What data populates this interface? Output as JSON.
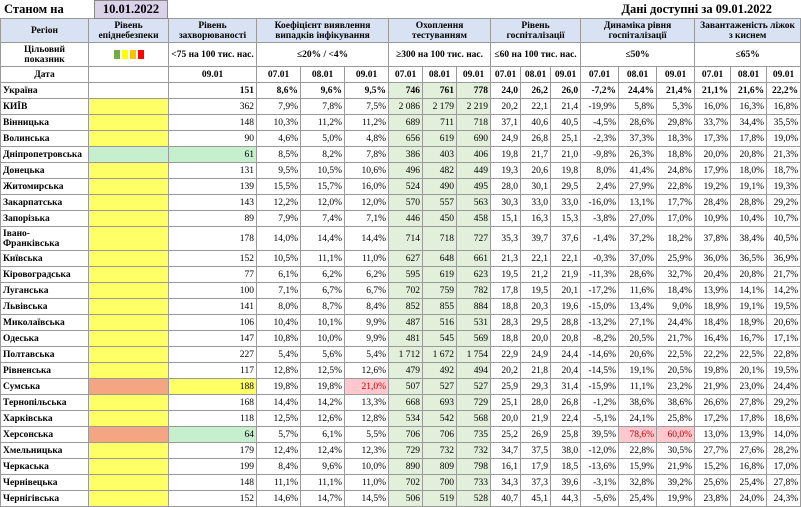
{
  "header": {
    "as_of_label": "Станом на",
    "as_of_date": "10.01.2022",
    "data_available": "Дані доступні за 09.01.2022"
  },
  "columns": {
    "region": "Регіон",
    "level": "Рівень епіднебезпеки",
    "incidence": "Рівень захворюваності",
    "detection": "Коефіцієнт виявлення випадків інфікування",
    "testing": "Охоплення тестуванням",
    "hosp": "Рівень госпіталізації",
    "hosp_dyn": "Динаміка рівня госпіталізації",
    "oxygen": "Завантаженість ліжок з киснем"
  },
  "targets": {
    "label": "Цільовий показник",
    "incidence": "<75 на 100 тис. нас.",
    "detection": "≤20% / <4%",
    "testing": "≥300 на 100 тис. нас.",
    "hosp": "≤60 на 100 тис. нас.",
    "hosp_dyn": "≤50%",
    "oxygen": "≤65%"
  },
  "legend_colors": [
    "#70ad47",
    "#ffff00",
    "#ffc000",
    "#ff0000"
  ],
  "date_row": {
    "label": "Дата",
    "incidence": "09.01",
    "d3": [
      "07.01",
      "08.01",
      "09.01"
    ]
  },
  "rows": [
    {
      "name": "Україна",
      "lvl": "",
      "inc": "151",
      "det": [
        "8,6%",
        "9,6%",
        "9,5%"
      ],
      "tst": [
        "746",
        "761",
        "778"
      ],
      "hsp": [
        "24,0",
        "26,2",
        "26,0"
      ],
      "dyn": [
        "-7,2%",
        "24,4%",
        "21,4%"
      ],
      "oxy": [
        "21,1%",
        "21,6%",
        "22,2%"
      ]
    },
    {
      "name": "КИЇВ",
      "lvl": "y",
      "inc": "362",
      "det": [
        "7,9%",
        "7,8%",
        "7,5%"
      ],
      "tst": [
        "2 086",
        "2 179",
        "2 219"
      ],
      "hsp": [
        "20,2",
        "22,1",
        "21,4"
      ],
      "dyn": [
        "-19,9%",
        "5,8%",
        "5,3%"
      ],
      "oxy": [
        "16,0%",
        "16,3%",
        "16,8%"
      ]
    },
    {
      "name": "Вінницька",
      "lvl": "y",
      "inc": "148",
      "det": [
        "10,3%",
        "11,2%",
        "11,2%"
      ],
      "tst": [
        "689",
        "711",
        "718"
      ],
      "hsp": [
        "37,1",
        "40,6",
        "40,5"
      ],
      "dyn": [
        "-4,5%",
        "28,6%",
        "29,8%"
      ],
      "oxy": [
        "33,7%",
        "34,4%",
        "35,5%"
      ]
    },
    {
      "name": "Волинська",
      "lvl": "y",
      "inc": "90",
      "det": [
        "4,6%",
        "5,0%",
        "4,8%"
      ],
      "tst": [
        "656",
        "619",
        "690"
      ],
      "hsp": [
        "24,9",
        "26,8",
        "25,1"
      ],
      "dyn": [
        "-2,3%",
        "37,3%",
        "18,3%"
      ],
      "oxy": [
        "17,3%",
        "17,8%",
        "19,0%"
      ]
    },
    {
      "name": "Дніпропетровська",
      "lvl": "g",
      "inc": "61",
      "det": [
        "8,5%",
        "8,2%",
        "7,8%"
      ],
      "tst": [
        "386",
        "403",
        "406"
      ],
      "hsp": [
        "19,8",
        "21,7",
        "21,0"
      ],
      "dyn": [
        "-9,8%",
        "26,3%",
        "18,8%"
      ],
      "oxy": [
        "20,0%",
        "20,8%",
        "21,3%"
      ]
    },
    {
      "name": "Донецька",
      "lvl": "y",
      "inc": "131",
      "det": [
        "9,5%",
        "10,5%",
        "10,6%"
      ],
      "tst": [
        "496",
        "482",
        "449"
      ],
      "hsp": [
        "19,3",
        "20,6",
        "19,8"
      ],
      "dyn": [
        "8,0%",
        "41,4%",
        "24,8%"
      ],
      "oxy": [
        "17,9%",
        "18,0%",
        "18,7%"
      ]
    },
    {
      "name": "Житомирська",
      "lvl": "y",
      "inc": "139",
      "det": [
        "15,5%",
        "15,7%",
        "16,0%"
      ],
      "tst": [
        "524",
        "490",
        "495"
      ],
      "hsp": [
        "28,0",
        "30,1",
        "29,5"
      ],
      "dyn": [
        "2,4%",
        "27,9%",
        "22,8%"
      ],
      "oxy": [
        "19,2%",
        "19,1%",
        "19,3%"
      ]
    },
    {
      "name": "Закарпатська",
      "lvl": "y",
      "inc": "143",
      "det": [
        "12,2%",
        "12,0%",
        "12,0%"
      ],
      "tst": [
        "570",
        "557",
        "563"
      ],
      "hsp": [
        "30,3",
        "33,0",
        "33,0"
      ],
      "dyn": [
        "-16,0%",
        "13,1%",
        "17,7%"
      ],
      "oxy": [
        "28,4%",
        "28,8%",
        "29,2%"
      ]
    },
    {
      "name": "Запорізька",
      "lvl": "y",
      "inc": "89",
      "det": [
        "7,9%",
        "7,4%",
        "7,1%"
      ],
      "tst": [
        "446",
        "450",
        "458"
      ],
      "hsp": [
        "15,1",
        "16,3",
        "15,3"
      ],
      "dyn": [
        "-3,8%",
        "27,0%",
        "17,0%"
      ],
      "oxy": [
        "10,9%",
        "10,4%",
        "10,7%"
      ]
    },
    {
      "name": "Івано-Франківська",
      "lvl": "y",
      "inc": "178",
      "det": [
        "14,0%",
        "14,4%",
        "14,4%"
      ],
      "tst": [
        "714",
        "718",
        "727"
      ],
      "hsp": [
        "35,3",
        "39,7",
        "37,6"
      ],
      "dyn": [
        "-1,4%",
        "37,2%",
        "18,2%"
      ],
      "oxy": [
        "37,8%",
        "38,4%",
        "40,5%"
      ]
    },
    {
      "name": "Київська",
      "lvl": "y",
      "inc": "152",
      "det": [
        "10,5%",
        "11,1%",
        "11,0%"
      ],
      "tst": [
        "627",
        "648",
        "661"
      ],
      "hsp": [
        "21,3",
        "22,1",
        "22,1"
      ],
      "dyn": [
        "-0,3%",
        "37,0%",
        "25,9%"
      ],
      "oxy": [
        "36,0%",
        "36,5%",
        "36,9%"
      ]
    },
    {
      "name": "Кіровоградська",
      "lvl": "y",
      "inc": "77",
      "det": [
        "6,1%",
        "6,2%",
        "6,2%"
      ],
      "tst": [
        "595",
        "619",
        "623"
      ],
      "hsp": [
        "19,5",
        "21,2",
        "21,9"
      ],
      "dyn": [
        "-11,3%",
        "28,6%",
        "32,7%"
      ],
      "oxy": [
        "20,4%",
        "20,8%",
        "21,7%"
      ]
    },
    {
      "name": "Луганська",
      "lvl": "y",
      "inc": "100",
      "det": [
        "7,1%",
        "6,7%",
        "6,7%"
      ],
      "tst": [
        "702",
        "759",
        "782"
      ],
      "hsp": [
        "17,8",
        "19,5",
        "20,1"
      ],
      "dyn": [
        "-17,2%",
        "11,6%",
        "18,4%"
      ],
      "oxy": [
        "13,9%",
        "14,1%",
        "14,2%"
      ]
    },
    {
      "name": "Львівська",
      "lvl": "y",
      "inc": "141",
      "det": [
        "8,0%",
        "8,7%",
        "8,4%"
      ],
      "tst": [
        "852",
        "855",
        "884"
      ],
      "hsp": [
        "18,8",
        "20,3",
        "19,6"
      ],
      "dyn": [
        "-15,0%",
        "13,4%",
        "9,0%"
      ],
      "oxy": [
        "18,9%",
        "19,1%",
        "19,5%"
      ]
    },
    {
      "name": "Миколаївська",
      "lvl": "y",
      "inc": "106",
      "det": [
        "10,4%",
        "10,1%",
        "9,9%"
      ],
      "tst": [
        "487",
        "516",
        "531"
      ],
      "hsp": [
        "28,3",
        "29,5",
        "28,8"
      ],
      "dyn": [
        "-13,2%",
        "27,1%",
        "24,4%"
      ],
      "oxy": [
        "18,4%",
        "18,9%",
        "20,6%"
      ]
    },
    {
      "name": "Одеська",
      "lvl": "y",
      "inc": "147",
      "det": [
        "10,8%",
        "10,0%",
        "9,9%"
      ],
      "tst": [
        "481",
        "545",
        "569"
      ],
      "hsp": [
        "18,8",
        "20,0",
        "20,8"
      ],
      "dyn": [
        "-8,2%",
        "20,5%",
        "21,7%"
      ],
      "oxy": [
        "16,4%",
        "16,7%",
        "17,1%"
      ]
    },
    {
      "name": "Полтавська",
      "lvl": "y",
      "inc": "227",
      "det": [
        "5,4%",
        "5,6%",
        "5,4%"
      ],
      "tst": [
        "1 712",
        "1 672",
        "1 754"
      ],
      "hsp": [
        "22,9",
        "24,9",
        "24,4"
      ],
      "dyn": [
        "-14,6%",
        "20,6%",
        "22,5%"
      ],
      "oxy": [
        "22,2%",
        "22,5%",
        "22,8%"
      ]
    },
    {
      "name": "Рівненська",
      "lvl": "y",
      "inc": "117",
      "det": [
        "12,8%",
        "12,5%",
        "12,6%"
      ],
      "tst": [
        "479",
        "492",
        "494"
      ],
      "hsp": [
        "20,2",
        "21,8",
        "20,4"
      ],
      "dyn": [
        "-14,5%",
        "19,1%",
        "20,5%"
      ],
      "oxy": [
        "19,8%",
        "20,1%",
        "19,5%"
      ]
    },
    {
      "name": "Сумська",
      "lvl": "o",
      "inc": "188",
      "det": [
        "19,8%",
        "19,8%",
        "21,0%"
      ],
      "tst": [
        "507",
        "527",
        "527"
      ],
      "hsp": [
        "25,9",
        "29,3",
        "31,4"
      ],
      "dyn": [
        "-15,9%",
        "11,1%",
        "23,2%"
      ],
      "oxy": [
        "21,9%",
        "23,0%",
        "24,4%"
      ]
    },
    {
      "name": "Тернопільська",
      "lvl": "y",
      "inc": "168",
      "det": [
        "14,4%",
        "14,2%",
        "13,3%"
      ],
      "tst": [
        "668",
        "693",
        "729"
      ],
      "hsp": [
        "25,1",
        "28,0",
        "26,8"
      ],
      "dyn": [
        "-1,2%",
        "38,6%",
        "38,6%"
      ],
      "oxy": [
        "26,6%",
        "27,8%",
        "29,2%"
      ]
    },
    {
      "name": "Харківська",
      "lvl": "y",
      "inc": "118",
      "det": [
        "12,5%",
        "12,6%",
        "12,8%"
      ],
      "tst": [
        "534",
        "542",
        "568"
      ],
      "hsp": [
        "20,0",
        "21,9",
        "22,4"
      ],
      "dyn": [
        "-5,1%",
        "24,1%",
        "25,8%"
      ],
      "oxy": [
        "17,2%",
        "17,8%",
        "18,6%"
      ]
    },
    {
      "name": "Херсонська",
      "lvl": "o",
      "inc": "64",
      "det": [
        "5,7%",
        "6,1%",
        "5,5%"
      ],
      "tst": [
        "706",
        "706",
        "735"
      ],
      "hsp": [
        "25,2",
        "26,9",
        "25,8"
      ],
      "dyn": [
        "39,5%",
        "78,6%",
        "60,0%"
      ],
      "oxy": [
        "13,0%",
        "13,9%",
        "14,0%"
      ]
    },
    {
      "name": "Хмельницька",
      "lvl": "y",
      "inc": "179",
      "det": [
        "12,4%",
        "12,4%",
        "12,3%"
      ],
      "tst": [
        "729",
        "732",
        "732"
      ],
      "hsp": [
        "34,7",
        "37,5",
        "38,0"
      ],
      "dyn": [
        "-12,0%",
        "22,8%",
        "30,5%"
      ],
      "oxy": [
        "27,7%",
        "27,6%",
        "28,2%"
      ]
    },
    {
      "name": "Черкаська",
      "lvl": "y",
      "inc": "199",
      "det": [
        "8,4%",
        "9,6%",
        "10,0%"
      ],
      "tst": [
        "890",
        "809",
        "798"
      ],
      "hsp": [
        "16,1",
        "17,9",
        "18,5"
      ],
      "dyn": [
        "-13,6%",
        "15,9%",
        "21,9%"
      ],
      "oxy": [
        "15,2%",
        "16,8%",
        "17,0%"
      ]
    },
    {
      "name": "Чернівецька",
      "lvl": "y",
      "inc": "148",
      "det": [
        "11,1%",
        "11,1%",
        "11,0%"
      ],
      "tst": [
        "702",
        "700",
        "733"
      ],
      "hsp": [
        "34,3",
        "37,3",
        "39,6"
      ],
      "dyn": [
        "-3,1%",
        "32,8%",
        "39,2%"
      ],
      "oxy": [
        "25,6%",
        "25,4%",
        "27,8%"
      ]
    },
    {
      "name": "Чернігівська",
      "lvl": "y",
      "inc": "152",
      "det": [
        "14,6%",
        "14,7%",
        "14,5%"
      ],
      "tst": [
        "506",
        "519",
        "528"
      ],
      "hsp": [
        "40,7",
        "45,1",
        "44,3"
      ],
      "dyn": [
        "-5,6%",
        "25,4%",
        "19,9%"
      ],
      "oxy": [
        "23,8%",
        "24,0%",
        "24,3%"
      ]
    }
  ]
}
